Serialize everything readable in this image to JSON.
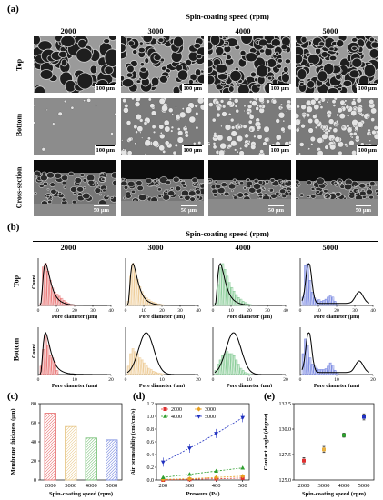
{
  "panels": {
    "a": "(a)",
    "b": "(b)",
    "c": "(c)",
    "d": "(d)",
    "e": "(e)"
  },
  "section_a": {
    "header": "Spin-coating speed (rpm)",
    "columns": [
      "2000",
      "3000",
      "4000",
      "5000"
    ],
    "rows": [
      "Top",
      "Bottom",
      "Cross-section"
    ],
    "scale_top": "100 μm",
    "scale_bottom": "100 μm",
    "scale_cross": "50 μm"
  },
  "section_b": {
    "header": "Spin-coating speed (rpm)",
    "columns": [
      "2000",
      "3000",
      "4000",
      "5000"
    ],
    "rows": [
      "Top",
      "Bottom"
    ],
    "y_label": "Count",
    "x_label": "Pore diameter (μm)"
  },
  "chart_data": [
    {
      "type": "bar",
      "title": "",
      "xlabel": "Spin-coating speed (rpm)",
      "ylabel": "Membrane thickness (μm)",
      "categories": [
        "2000",
        "3000",
        "4000",
        "5000"
      ],
      "values": [
        70,
        56,
        44,
        42
      ],
      "ylim": [
        0,
        80
      ],
      "yticks": [
        0,
        20,
        40,
        60,
        80
      ],
      "colors": [
        "#e87a7a",
        "#e8c88a",
        "#7ec47e",
        "#7e8fe0"
      ]
    },
    {
      "type": "line",
      "title": "",
      "xlabel": "Pressure (Pa)",
      "ylabel": "Air permeability (cm³/cm²/s)",
      "x": [
        200,
        300,
        400,
        500
      ],
      "xlim": [
        175,
        525
      ],
      "ylim": [
        0,
        1.2
      ],
      "yticks": [
        0.0,
        0.2,
        0.4,
        0.6,
        0.8,
        1.0,
        1.2
      ],
      "series": [
        {
          "name": "2000",
          "color": "#e03030",
          "marker": "square",
          "values": [
            0.0,
            0.01,
            0.02,
            0.03
          ]
        },
        {
          "name": "3000",
          "color": "#e8a020",
          "marker": "diamond",
          "values": [
            0.01,
            0.02,
            0.04,
            0.06
          ]
        },
        {
          "name": "4000",
          "color": "#30a030",
          "marker": "triangle",
          "values": [
            0.04,
            0.09,
            0.14,
            0.19
          ]
        },
        {
          "name": "5000",
          "color": "#2030c0",
          "marker": "tri-down",
          "values": [
            0.28,
            0.5,
            0.73,
            0.98
          ]
        }
      ],
      "legend": "top-left"
    },
    {
      "type": "scatter",
      "title": "",
      "xlabel": "Spin-coating speed (rpm)",
      "ylabel": "Contact angle (degree)",
      "categories": [
        "2000",
        "3000",
        "4000",
        "5000"
      ],
      "values": [
        126.9,
        128.0,
        129.4,
        131.2
      ],
      "errors": [
        0.3,
        0.3,
        0.2,
        0.3
      ],
      "ylim": [
        125.0,
        132.5
      ],
      "yticks": [
        "125.0",
        "127.5",
        "130.0",
        "132.5"
      ],
      "colors": [
        "#e03030",
        "#e8b040",
        "#30a030",
        "#2030c0"
      ]
    }
  ],
  "histograms": {
    "xticks_top": [
      "0",
      "10",
      "20",
      "30",
      "40"
    ],
    "xticks_bottom": [
      "0",
      "10",
      "20"
    ],
    "colors": [
      "#e87070",
      "#ecc890",
      "#80c890",
      "#7080e0"
    ]
  }
}
